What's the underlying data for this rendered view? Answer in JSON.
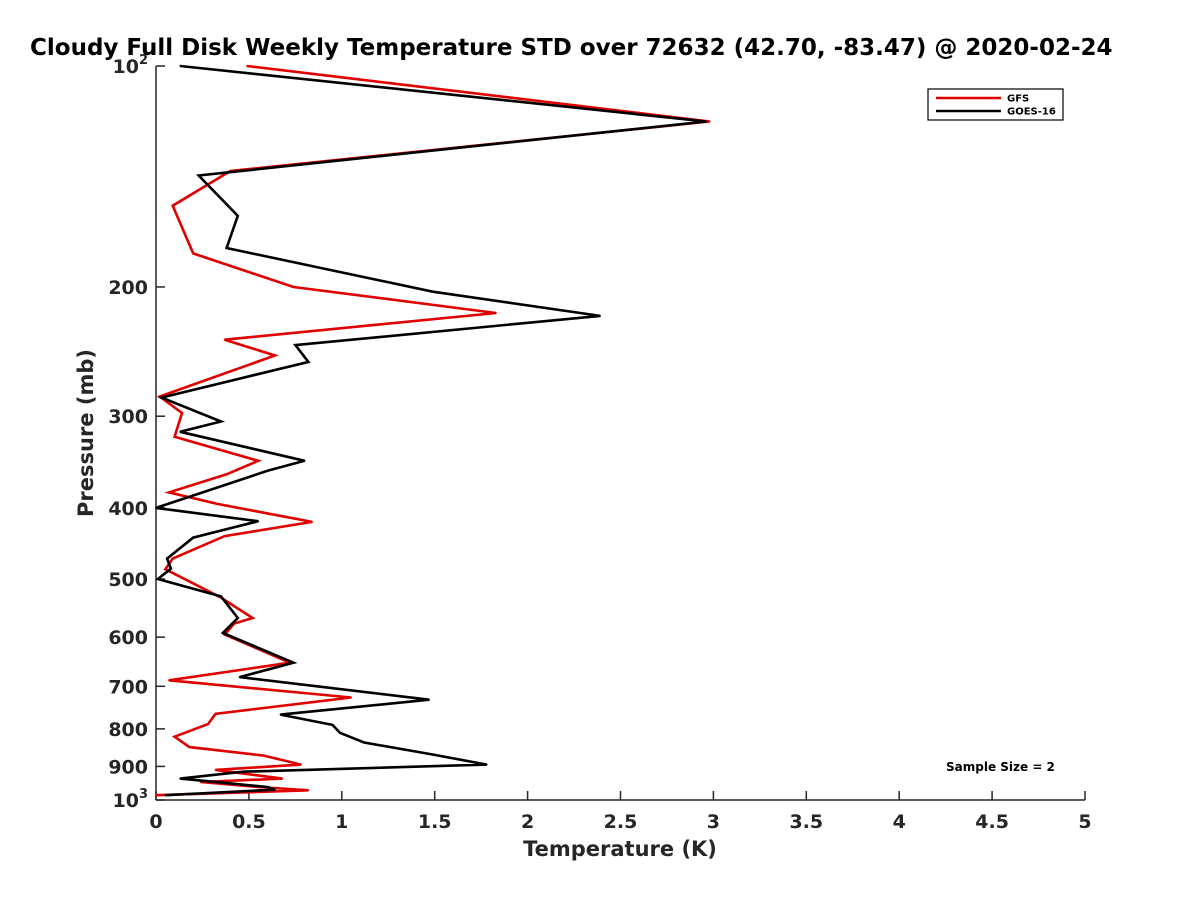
{
  "chart_data": {
    "type": "line",
    "title": "Cloudy Full Disk Weekly Temperature STD over 72632 (42.70, -83.47) @ 2020-02-24",
    "xlabel": "Temperature (K)",
    "ylabel": "Pressure (mb)",
    "xlim": [
      0,
      5
    ],
    "ylim": [
      100,
      1000
    ],
    "y_scale": "log",
    "y_reversed": true,
    "grid": false,
    "legend_position": "top-right",
    "x_ticks": [
      {
        "value": 0,
        "label": "0"
      },
      {
        "value": 0.5,
        "label": "0.5"
      },
      {
        "value": 1,
        "label": "1"
      },
      {
        "value": 1.5,
        "label": "1.5"
      },
      {
        "value": 2,
        "label": "2"
      },
      {
        "value": 2.5,
        "label": "2.5"
      },
      {
        "value": 3,
        "label": "3"
      },
      {
        "value": 3.5,
        "label": "3.5"
      },
      {
        "value": 4,
        "label": "4"
      },
      {
        "value": 4.5,
        "label": "4.5"
      },
      {
        "value": 5,
        "label": "5"
      }
    ],
    "y_ticks": [
      {
        "value": 100,
        "base": "10",
        "exp": "2"
      },
      {
        "value": 200,
        "label": "200"
      },
      {
        "value": 300,
        "label": "300"
      },
      {
        "value": 400,
        "label": "400"
      },
      {
        "value": 500,
        "label": "500"
      },
      {
        "value": 600,
        "label": "600"
      },
      {
        "value": 700,
        "label": "700"
      },
      {
        "value": 800,
        "label": "800"
      },
      {
        "value": 900,
        "label": "900"
      },
      {
        "value": 1000,
        "base": "10",
        "exp": "3"
      }
    ],
    "annotation": "Sample Size = 2",
    "series": [
      {
        "name": "GFS",
        "color": "#e00000",
        "points": [
          [
            0.49,
            100
          ],
          [
            2.98,
            119
          ],
          [
            0.4,
            139
          ],
          [
            0.09,
            155
          ],
          [
            0.2,
            180
          ],
          [
            0.74,
            200
          ],
          [
            1.83,
            217
          ],
          [
            0.37,
            236
          ],
          [
            0.64,
            248
          ],
          [
            0.02,
            282
          ],
          [
            0.14,
            297
          ],
          [
            0.1,
            320
          ],
          [
            0.55,
            345
          ],
          [
            0.38,
            360
          ],
          [
            0.07,
            381
          ],
          [
            0.33,
            395
          ],
          [
            0.84,
            418
          ],
          [
            0.37,
            437
          ],
          [
            0.09,
            469
          ],
          [
            0.05,
            485
          ],
          [
            0.1,
            492
          ],
          [
            0.35,
            530
          ],
          [
            0.52,
            565
          ],
          [
            0.42,
            575
          ],
          [
            0.37,
            595
          ],
          [
            0.72,
            650
          ],
          [
            0.47,
            664
          ],
          [
            0.07,
            687
          ],
          [
            1.05,
            725
          ],
          [
            0.32,
            763
          ],
          [
            0.28,
            788
          ],
          [
            0.1,
            820
          ],
          [
            0.18,
            847
          ],
          [
            0.58,
            870
          ],
          [
            0.78,
            895
          ],
          [
            0.32,
            910
          ],
          [
            0.68,
            935
          ],
          [
            0.24,
            945
          ],
          [
            0.55,
            960
          ],
          [
            0.82,
            970
          ],
          [
            0.0,
            985
          ]
        ]
      },
      {
        "name": "GOES-16",
        "color": "#000000",
        "points": [
          [
            0.13,
            100
          ],
          [
            2.96,
            119
          ],
          [
            0.23,
            141
          ],
          [
            0.44,
            160
          ],
          [
            0.38,
            177
          ],
          [
            1.49,
            203
          ],
          [
            2.39,
            219
          ],
          [
            0.75,
            240
          ],
          [
            0.82,
            253
          ],
          [
            0.03,
            283
          ],
          [
            0.35,
            305
          ],
          [
            0.13,
            315
          ],
          [
            0.8,
            345
          ],
          [
            0.6,
            356
          ],
          [
            0.0,
            400
          ],
          [
            0.55,
            417
          ],
          [
            0.2,
            439
          ],
          [
            0.06,
            469
          ],
          [
            0.08,
            484
          ],
          [
            0.01,
            500
          ],
          [
            0.35,
            528
          ],
          [
            0.44,
            565
          ],
          [
            0.36,
            592
          ],
          [
            0.74,
            650
          ],
          [
            0.45,
            680
          ],
          [
            1.47,
            730
          ],
          [
            0.67,
            765
          ],
          [
            0.95,
            790
          ],
          [
            0.99,
            810
          ],
          [
            1.12,
            835
          ],
          [
            1.5,
            868
          ],
          [
            1.78,
            895
          ],
          [
            0.47,
            915
          ],
          [
            0.13,
            935
          ],
          [
            0.6,
            960
          ],
          [
            0.64,
            968
          ],
          [
            0.05,
            985
          ]
        ]
      }
    ]
  }
}
